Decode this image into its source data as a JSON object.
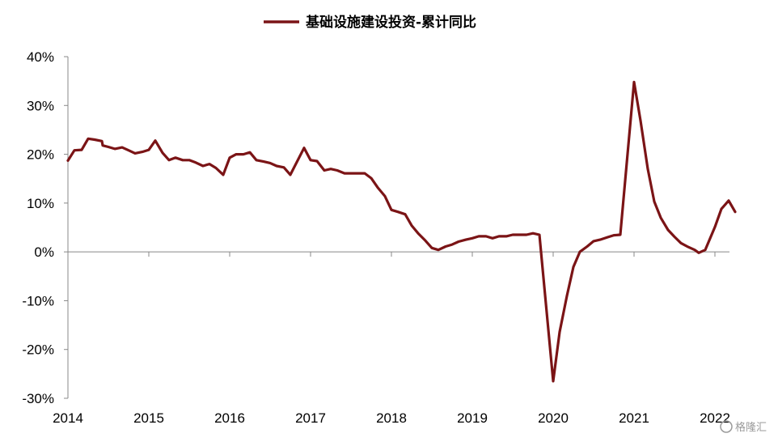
{
  "chart_data": {
    "type": "line",
    "title": "",
    "xlabel": "",
    "ylabel": "",
    "ylim": [
      -30,
      40
    ],
    "y_ticks": [
      "-30%",
      "-20%",
      "-10%",
      "0%",
      "10%",
      "20%",
      "30%",
      "40%"
    ],
    "y_tick_values": [
      -30,
      -20,
      -10,
      0,
      10,
      20,
      30,
      40
    ],
    "x_ticks": [
      "2014",
      "2015",
      "2016",
      "2017",
      "2018",
      "2019",
      "2020",
      "2021",
      "2022"
    ],
    "x_tick_values": [
      2014,
      2015,
      2016,
      2017,
      2018,
      2019,
      2020,
      2021,
      2022
    ],
    "xlim": [
      2014,
      2022.25
    ],
    "grid": false,
    "legend_position": "top-center",
    "series": [
      {
        "name": "基础设施建设投资-累计同比",
        "color": "#7b1416",
        "points": [
          [
            2014.0,
            18.7
          ],
          [
            2014.08,
            20.8
          ],
          [
            2014.17,
            20.9
          ],
          [
            2014.25,
            23.2
          ],
          [
            2014.33,
            23.0
          ],
          [
            2014.42,
            22.7
          ],
          [
            2014.43,
            21.8
          ],
          [
            2014.5,
            21.5
          ],
          [
            2014.58,
            21.1
          ],
          [
            2014.67,
            21.4
          ],
          [
            2014.75,
            20.8
          ],
          [
            2014.83,
            20.2
          ],
          [
            2014.92,
            20.5
          ],
          [
            2015.0,
            20.9
          ],
          [
            2015.08,
            22.8
          ],
          [
            2015.17,
            20.3
          ],
          [
            2015.25,
            18.8
          ],
          [
            2015.33,
            19.3
          ],
          [
            2015.42,
            18.8
          ],
          [
            2015.5,
            18.8
          ],
          [
            2015.58,
            18.3
          ],
          [
            2015.67,
            17.6
          ],
          [
            2015.75,
            18.0
          ],
          [
            2015.83,
            17.2
          ],
          [
            2015.92,
            15.8
          ],
          [
            2016.0,
            19.3
          ],
          [
            2016.08,
            20.0
          ],
          [
            2016.17,
            20.0
          ],
          [
            2016.25,
            20.4
          ],
          [
            2016.33,
            18.8
          ],
          [
            2016.42,
            18.5
          ],
          [
            2016.5,
            18.2
          ],
          [
            2016.58,
            17.6
          ],
          [
            2016.67,
            17.3
          ],
          [
            2016.75,
            15.8
          ],
          [
            2016.92,
            21.3
          ],
          [
            2017.0,
            18.8
          ],
          [
            2017.08,
            18.6
          ],
          [
            2017.17,
            16.7
          ],
          [
            2017.25,
            17.0
          ],
          [
            2017.33,
            16.7
          ],
          [
            2017.42,
            16.1
          ],
          [
            2017.5,
            16.1
          ],
          [
            2017.58,
            16.1
          ],
          [
            2017.67,
            16.1
          ],
          [
            2017.75,
            15.1
          ],
          [
            2017.83,
            13.2
          ],
          [
            2017.92,
            11.4
          ],
          [
            2018.0,
            8.6
          ],
          [
            2018.08,
            8.2
          ],
          [
            2018.17,
            7.7
          ],
          [
            2018.25,
            5.4
          ],
          [
            2018.33,
            3.8
          ],
          [
            2018.42,
            2.3
          ],
          [
            2018.5,
            0.8
          ],
          [
            2018.58,
            0.4
          ],
          [
            2018.67,
            1.1
          ],
          [
            2018.75,
            1.5
          ],
          [
            2018.83,
            2.1
          ],
          [
            2018.92,
            2.5
          ],
          [
            2019.0,
            2.8
          ],
          [
            2019.08,
            3.2
          ],
          [
            2019.17,
            3.2
          ],
          [
            2019.25,
            2.8
          ],
          [
            2019.33,
            3.2
          ],
          [
            2019.42,
            3.2
          ],
          [
            2019.5,
            3.5
          ],
          [
            2019.58,
            3.5
          ],
          [
            2019.67,
            3.5
          ],
          [
            2019.75,
            3.8
          ],
          [
            2019.83,
            3.5
          ],
          [
            2020.0,
            -26.5
          ],
          [
            2020.08,
            -16.4
          ],
          [
            2020.17,
            -9.0
          ],
          [
            2020.25,
            -3.1
          ],
          [
            2020.33,
            0.0
          ],
          [
            2020.42,
            1.1
          ],
          [
            2020.5,
            2.2
          ],
          [
            2020.58,
            2.5
          ],
          [
            2020.67,
            3.0
          ],
          [
            2020.75,
            3.4
          ],
          [
            2020.83,
            3.5
          ],
          [
            2021.0,
            34.8
          ],
          [
            2021.08,
            26.9
          ],
          [
            2021.17,
            17.0
          ],
          [
            2021.25,
            10.3
          ],
          [
            2021.33,
            7.0
          ],
          [
            2021.42,
            4.5
          ],
          [
            2021.5,
            3.1
          ],
          [
            2021.58,
            1.8
          ],
          [
            2021.67,
            1.0
          ],
          [
            2021.75,
            0.4
          ],
          [
            2021.8,
            -0.2
          ],
          [
            2021.88,
            0.4
          ],
          [
            2022.0,
            5.1
          ],
          [
            2022.08,
            8.8
          ],
          [
            2022.17,
            10.5
          ],
          [
            2022.25,
            8.2
          ]
        ]
      }
    ],
    "watermark": "格隆汇"
  }
}
